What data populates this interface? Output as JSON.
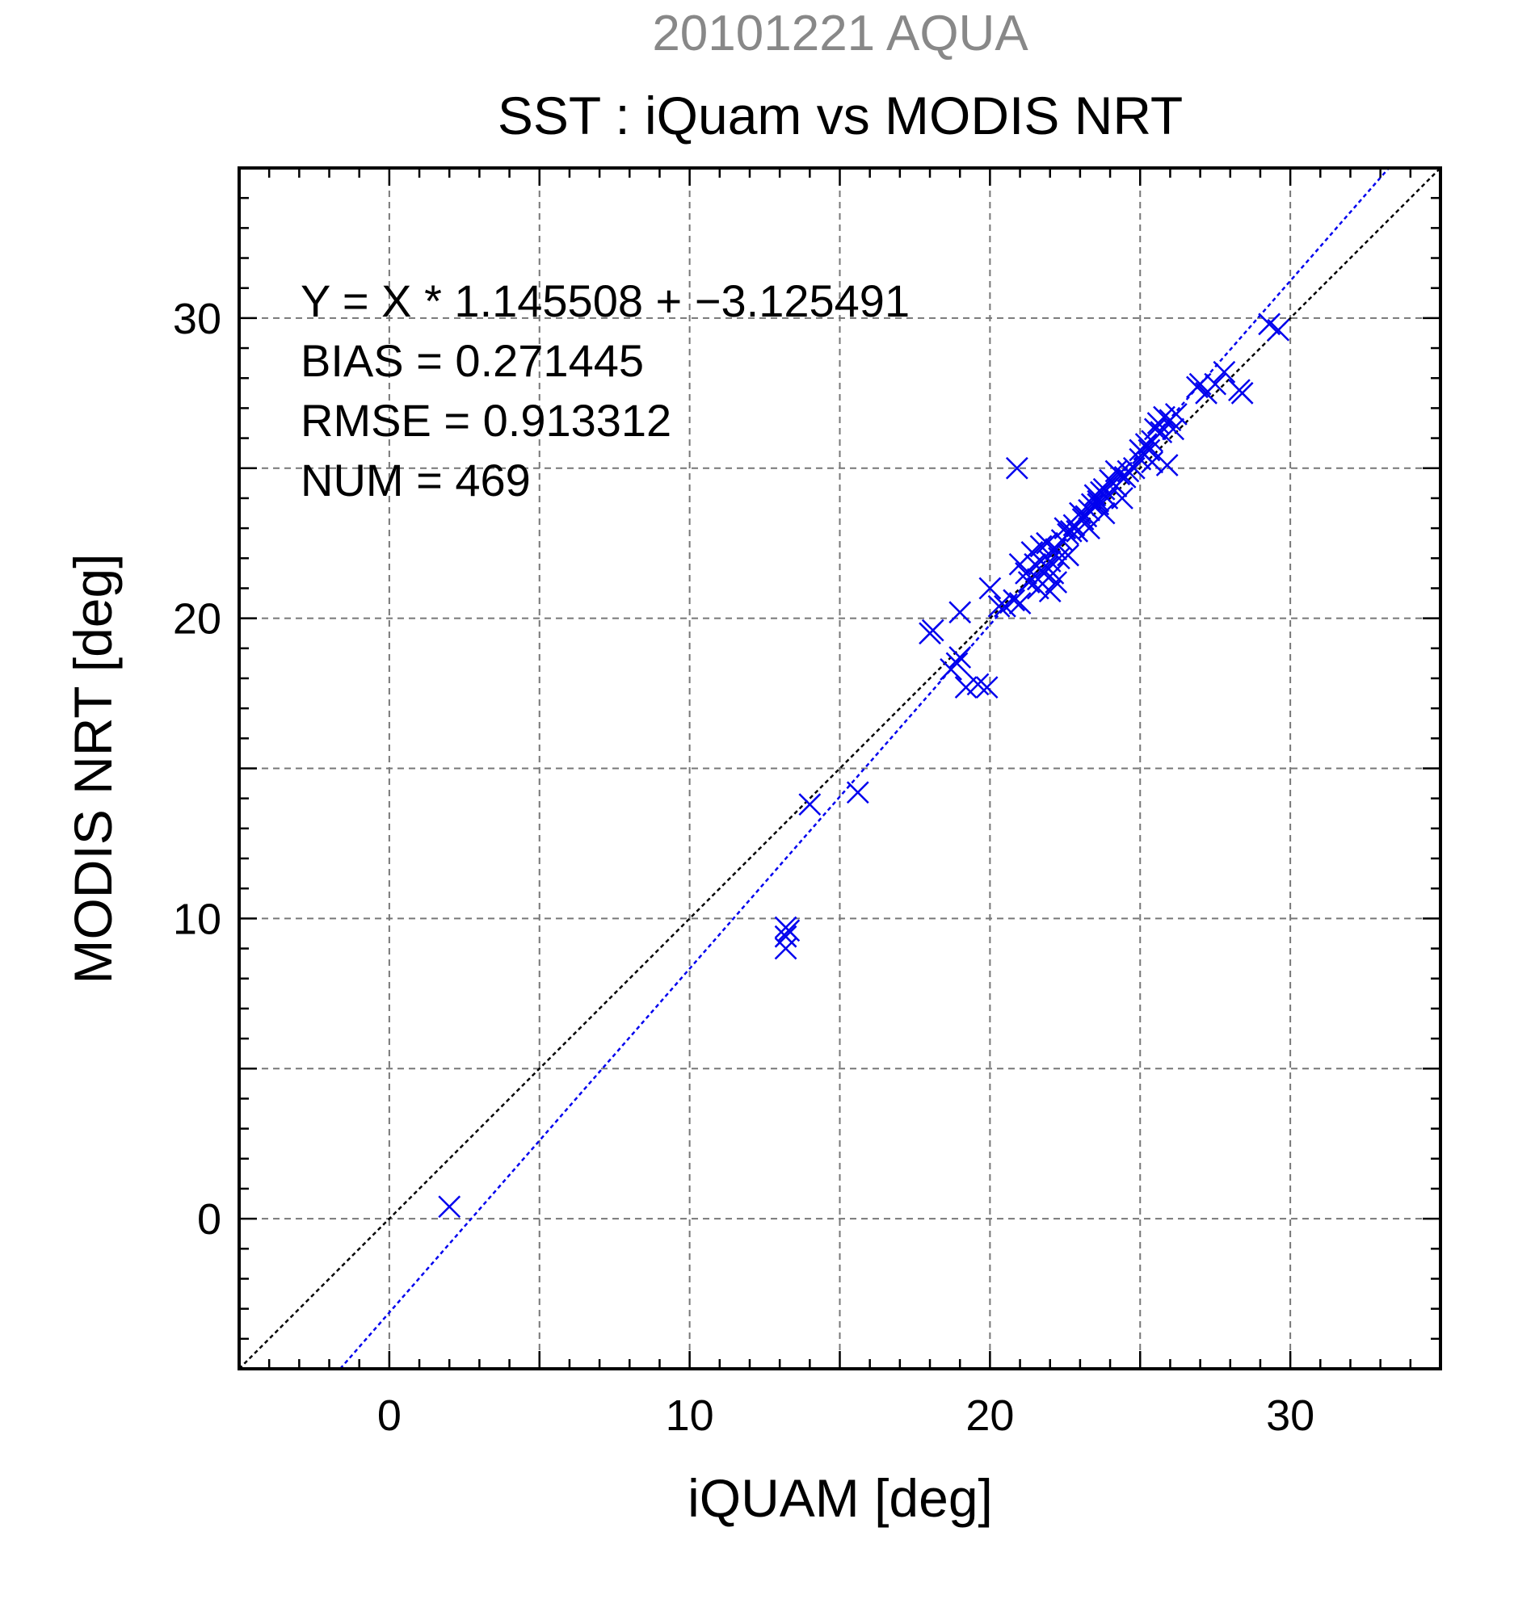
{
  "chart_data": {
    "type": "scatter",
    "title": "SST : iQuam vs MODIS NRT",
    "subtitle": "20101221 AQUA",
    "xlabel": "iQUAM [deg]",
    "ylabel": "MODIS NRT [deg]",
    "xlim": [
      -5,
      35
    ],
    "ylim": [
      -5,
      35
    ],
    "x_ticks": [
      0,
      10,
      20,
      30
    ],
    "y_ticks": [
      0,
      10,
      20,
      30
    ],
    "x_tick_labels": [
      "0",
      "10",
      "20",
      "30"
    ],
    "y_tick_labels": [
      "0",
      "10",
      "20",
      "30"
    ],
    "grid": true,
    "colors": {
      "points": "#0000ee",
      "fit_line": "#0000ee",
      "identity_line": "#000000",
      "subtitle": "#888888",
      "grid": "#777777"
    },
    "stats": [
      "Y = X * 1.145508 + −3.125491",
      "BIAS = 0.271445",
      "RMSE = 0.913312",
      "NUM = 469"
    ],
    "fit": {
      "slope": 1.145508,
      "intercept": -3.125491
    },
    "identity": {
      "slope": 1,
      "intercept": 0
    },
    "series": [
      {
        "marker": "x",
        "x": [
          2.0,
          13.2,
          13.2,
          13.2,
          13.3,
          14.0,
          15.6,
          18.0,
          18.1,
          18.7,
          18.9,
          19.0,
          19.2,
          19.6,
          19.0,
          19.9,
          20.0,
          20.3,
          20.5,
          20.8,
          20.9,
          21.0,
          21.0,
          21.2,
          21.3,
          21.5,
          21.6,
          21.7,
          21.8,
          21.9,
          22.0,
          22.1,
          22.2,
          22.3,
          22.4,
          22.5,
          22.6,
          22.7,
          22.8,
          22.9,
          23.0,
          23.1,
          23.2,
          23.3,
          23.4,
          23.5,
          23.6,
          23.7,
          23.8,
          23.9,
          24.0,
          24.1,
          24.2,
          24.3,
          24.5,
          24.6,
          24.8,
          25.0,
          25.1,
          25.2,
          25.3,
          25.4,
          25.5,
          25.6,
          25.7,
          25.8,
          26.0,
          26.2,
          26.9,
          27.0,
          27.2,
          27.5,
          27.8,
          28.3,
          28.4,
          29.3,
          29.6,
          21.6,
          22.0,
          21.4,
          21.9,
          22.6,
          23.8,
          24.4,
          25.4,
          25.9,
          23.3,
          24.2,
          22.2,
          21.7,
          25.0,
          26.1,
          23.6
        ],
        "y": [
          0.4,
          9.7,
          9.4,
          9.0,
          9.6,
          13.8,
          14.2,
          19.5,
          19.6,
          18.3,
          18.5,
          20.2,
          17.7,
          17.8,
          18.7,
          17.7,
          21.0,
          20.4,
          20.4,
          20.6,
          25.0,
          21.8,
          20.5,
          21.5,
          21.2,
          21.8,
          21.3,
          21.9,
          21.5,
          21.7,
          21.9,
          21.5,
          22.3,
          22.0,
          22.6,
          23.0,
          22.8,
          22.9,
          23.1,
          22.9,
          23.5,
          23.3,
          23.4,
          23.6,
          23.8,
          24.1,
          23.9,
          24.2,
          24.3,
          24.0,
          24.6,
          24.5,
          24.9,
          24.8,
          24.7,
          24.9,
          25.0,
          25.3,
          25.5,
          25.8,
          25.6,
          25.9,
          26.3,
          26.5,
          26.2,
          26.7,
          26.6,
          26.8,
          27.7,
          27.8,
          27.5,
          27.8,
          28.2,
          27.6,
          27.5,
          29.8,
          29.6,
          21.0,
          20.9,
          22.2,
          22.5,
          22.1,
          23.5,
          24.0,
          25.2,
          25.1,
          23.0,
          24.4,
          21.2,
          22.4,
          25.6,
          26.3,
          23.8
        ]
      }
    ]
  }
}
